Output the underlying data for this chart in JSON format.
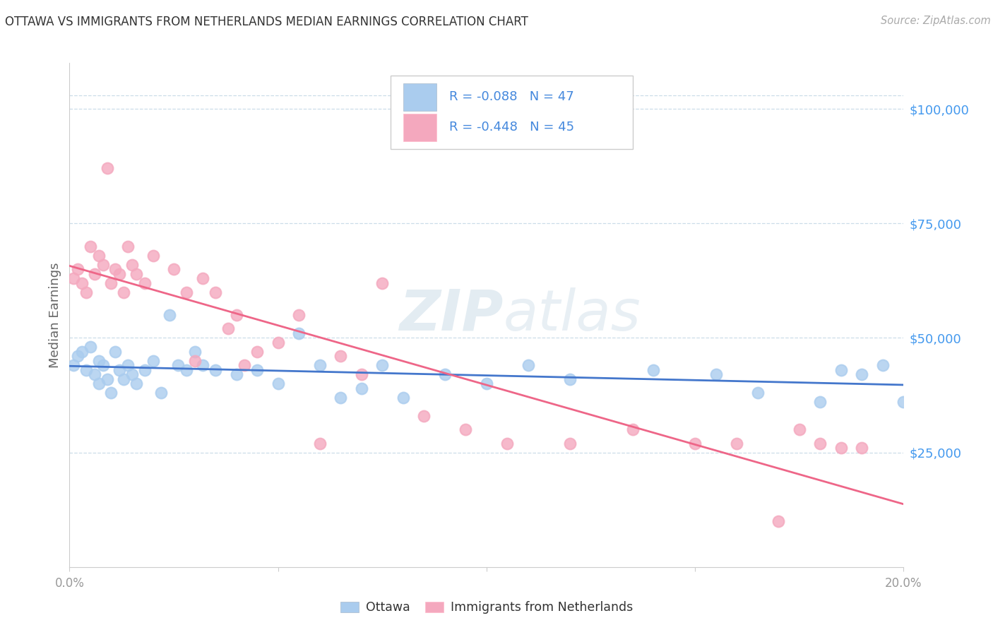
{
  "title": "OTTAWA VS IMMIGRANTS FROM NETHERLANDS MEDIAN EARNINGS CORRELATION CHART",
  "source": "Source: ZipAtlas.com",
  "ylabel": "Median Earnings",
  "xlim": [
    0.0,
    0.2
  ],
  "ylim": [
    0,
    110000
  ],
  "yticks": [
    25000,
    50000,
    75000,
    100000
  ],
  "ytick_labels": [
    "$25,000",
    "$50,000",
    "$75,000",
    "$100,000"
  ],
  "xticks": [
    0.0,
    0.05,
    0.1,
    0.15,
    0.2
  ],
  "xtick_labels": [
    "0.0%",
    "",
    "",
    "",
    "20.0%"
  ],
  "watermark_zip": "ZIP",
  "watermark_atlas": "atlas",
  "color_ottawa": "#aaccee",
  "color_netherlands": "#f4a8be",
  "color_line_ottawa": "#4477cc",
  "color_line_netherlands": "#ee6688",
  "color_ytick_labels": "#4499ee",
  "color_legend_text": "#4488dd",
  "color_title": "#333333",
  "background_color": "#ffffff",
  "grid_color": "#ccdde8",
  "ottawa_x": [
    0.001,
    0.002,
    0.003,
    0.004,
    0.005,
    0.006,
    0.007,
    0.007,
    0.008,
    0.009,
    0.01,
    0.011,
    0.012,
    0.013,
    0.014,
    0.015,
    0.016,
    0.018,
    0.02,
    0.022,
    0.024,
    0.026,
    0.028,
    0.03,
    0.032,
    0.035,
    0.04,
    0.045,
    0.05,
    0.055,
    0.06,
    0.065,
    0.07,
    0.075,
    0.08,
    0.09,
    0.1,
    0.11,
    0.12,
    0.14,
    0.155,
    0.165,
    0.18,
    0.185,
    0.19,
    0.195,
    0.2
  ],
  "ottawa_y": [
    44000,
    46000,
    47000,
    43000,
    48000,
    42000,
    45000,
    40000,
    44000,
    41000,
    38000,
    47000,
    43000,
    41000,
    44000,
    42000,
    40000,
    43000,
    45000,
    38000,
    55000,
    44000,
    43000,
    47000,
    44000,
    43000,
    42000,
    43000,
    40000,
    51000,
    44000,
    37000,
    39000,
    44000,
    37000,
    42000,
    40000,
    44000,
    41000,
    43000,
    42000,
    38000,
    36000,
    43000,
    42000,
    44000,
    36000
  ],
  "netherlands_x": [
    0.001,
    0.002,
    0.003,
    0.004,
    0.005,
    0.006,
    0.007,
    0.008,
    0.009,
    0.01,
    0.011,
    0.012,
    0.013,
    0.014,
    0.015,
    0.016,
    0.018,
    0.02,
    0.025,
    0.028,
    0.03,
    0.032,
    0.035,
    0.038,
    0.04,
    0.042,
    0.045,
    0.05,
    0.055,
    0.06,
    0.065,
    0.07,
    0.075,
    0.085,
    0.095,
    0.105,
    0.12,
    0.135,
    0.15,
    0.16,
    0.17,
    0.175,
    0.18,
    0.185,
    0.19
  ],
  "netherlands_y": [
    63000,
    65000,
    62000,
    60000,
    70000,
    64000,
    68000,
    66000,
    87000,
    62000,
    65000,
    64000,
    60000,
    70000,
    66000,
    64000,
    62000,
    68000,
    65000,
    60000,
    45000,
    63000,
    60000,
    52000,
    55000,
    44000,
    47000,
    49000,
    55000,
    27000,
    46000,
    42000,
    62000,
    33000,
    30000,
    27000,
    27000,
    30000,
    27000,
    27000,
    10000,
    30000,
    27000,
    26000,
    26000
  ],
  "R_ottawa": -0.088,
  "N_ottawa": 47,
  "R_netherlands": -0.448,
  "N_netherlands": 45
}
